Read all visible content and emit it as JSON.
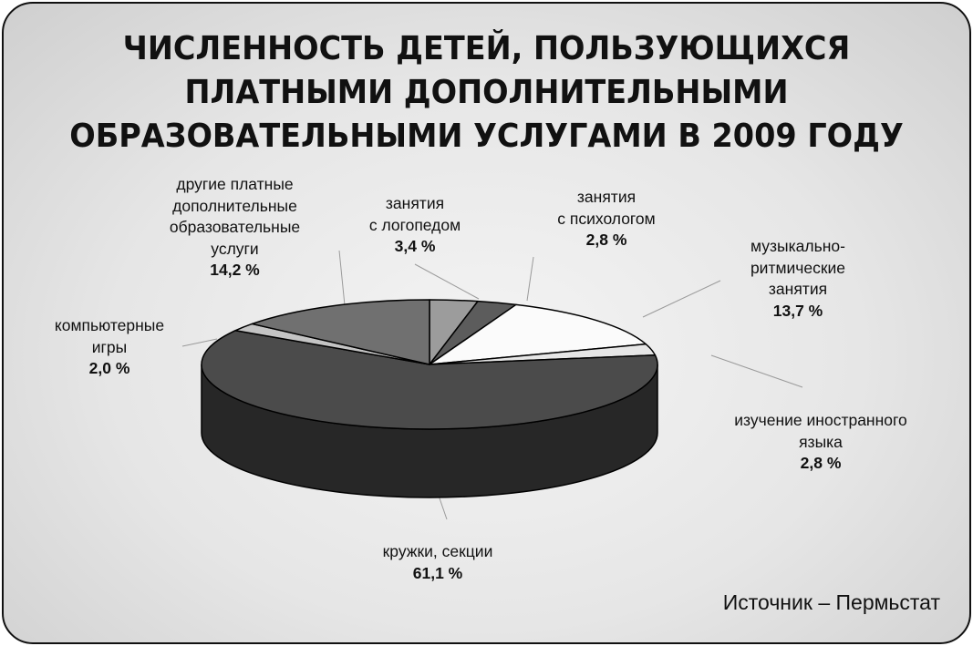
{
  "chart_data": {
    "type": "pie",
    "title": "ЧИСЛЕННОСТЬ ДЕТЕЙ, ПОЛЬЗУЮЩИХСЯ ПЛАТНЫМИ ДОПОЛНИТЕЛЬНЫМИ ОБРАЗОВАТЕЛЬНЫМИ УСЛУГАМИ В 2009 ГОДУ",
    "title_lines": [
      "ЧИСЛЕННОСТЬ ДЕТЕЙ, ПОЛЬЗУЮЩИХСЯ",
      "ПЛАТНЫМИ ДОПОЛНИТЕЛЬНЫМИ",
      "ОБРАЗОВАТЕЛЬНЫМИ УСЛУГАМИ В 2009 ГОДУ"
    ],
    "style": "3d",
    "slices": [
      {
        "label": "занятия с логопедом",
        "value": 3.4,
        "value_label": "3,4 %",
        "color": "#9c9c9c"
      },
      {
        "label": "занятия с психологом",
        "value": 2.8,
        "value_label": "2,8 %",
        "color": "#5c5c5c"
      },
      {
        "label": "музыкально-ритмические занятия",
        "value": 13.7,
        "value_label": "13,7 %",
        "color": "#fbfbfb"
      },
      {
        "label": "изучение иностранного языка",
        "value": 2.8,
        "value_label": "2,8 %",
        "color": "#e6e6e6"
      },
      {
        "label": "кружки, секции",
        "value": 61.1,
        "value_label": "61,1 %",
        "color": "#4b4b4b"
      },
      {
        "label": "компьютерные игры",
        "value": 2.0,
        "value_label": "2,0 %",
        "color": "#c4c4c4"
      },
      {
        "label": "другие платные дополнительные образовательные услуги",
        "value": 14.2,
        "value_label": "14,2 %",
        "color": "#707070"
      }
    ],
    "label_lines": [
      [
        "занятия",
        "с логопедом"
      ],
      [
        "занятия",
        "с психологом"
      ],
      [
        "музыкально-",
        "ритмические",
        "занятия"
      ],
      [
        "изучение иностранного",
        "языка"
      ],
      [
        "кружки, секции"
      ],
      [
        "компьютерные",
        "игры"
      ],
      [
        "другие платные",
        "дополнительные",
        "образовательные",
        "услуги"
      ]
    ]
  },
  "source": "Источник – Пермьстат"
}
